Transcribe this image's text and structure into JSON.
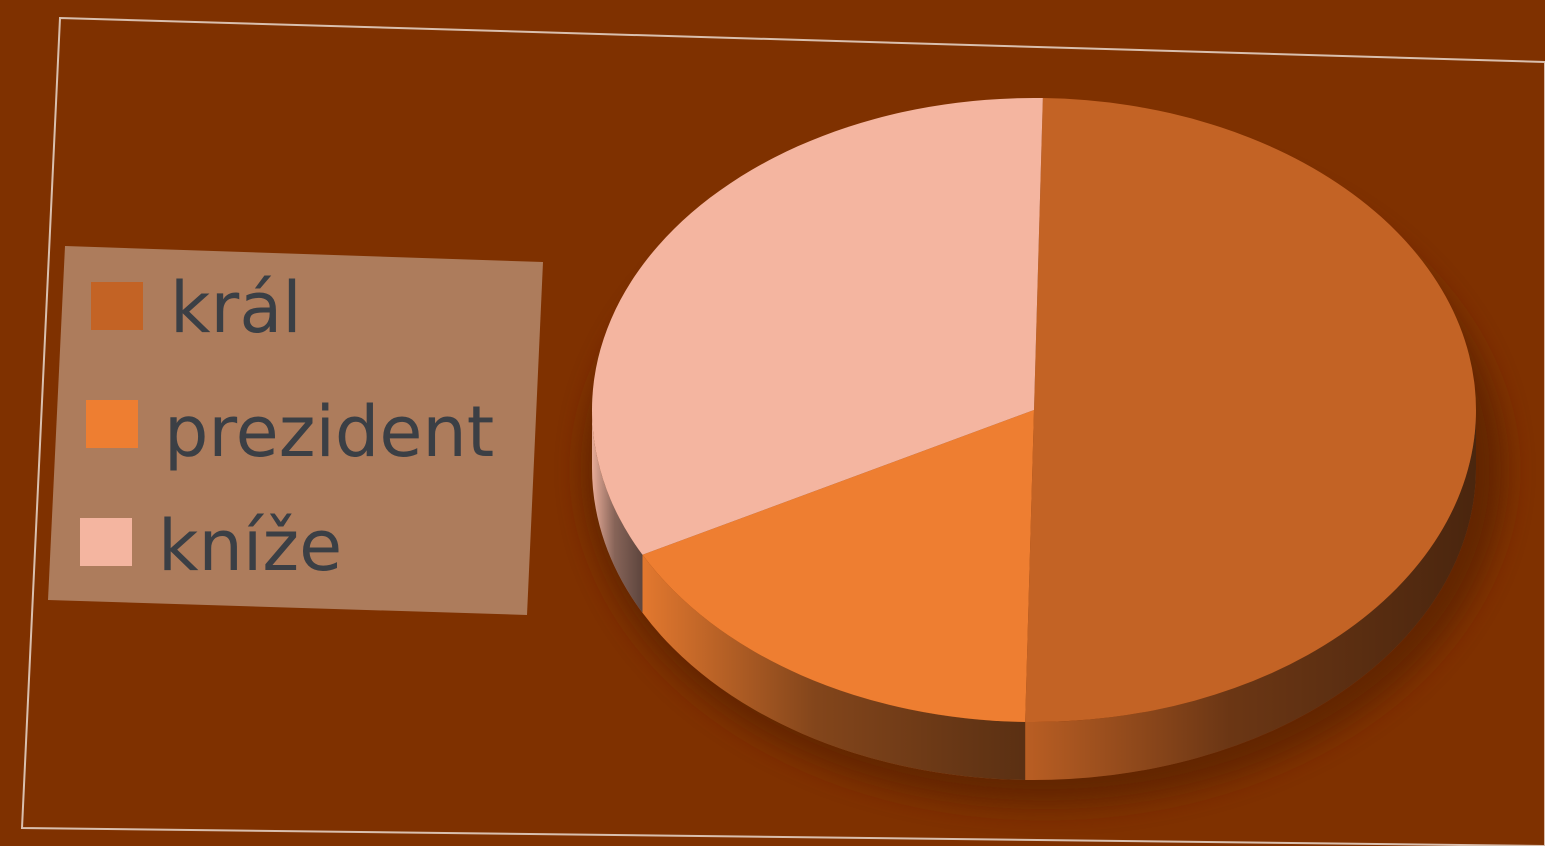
{
  "chart_data": {
    "type": "pie",
    "title": "",
    "categories": [
      "král",
      "prezident",
      "kníže"
    ],
    "values": [
      50,
      17,
      33
    ],
    "colors": [
      "#c36325",
      "#ee7e31",
      "#f4b5a0"
    ],
    "legend_position": "left",
    "three_d": true,
    "background_color": "#7f3100",
    "legend_background": "#ad7c5c",
    "legend_text_color": "#3b3f45"
  }
}
